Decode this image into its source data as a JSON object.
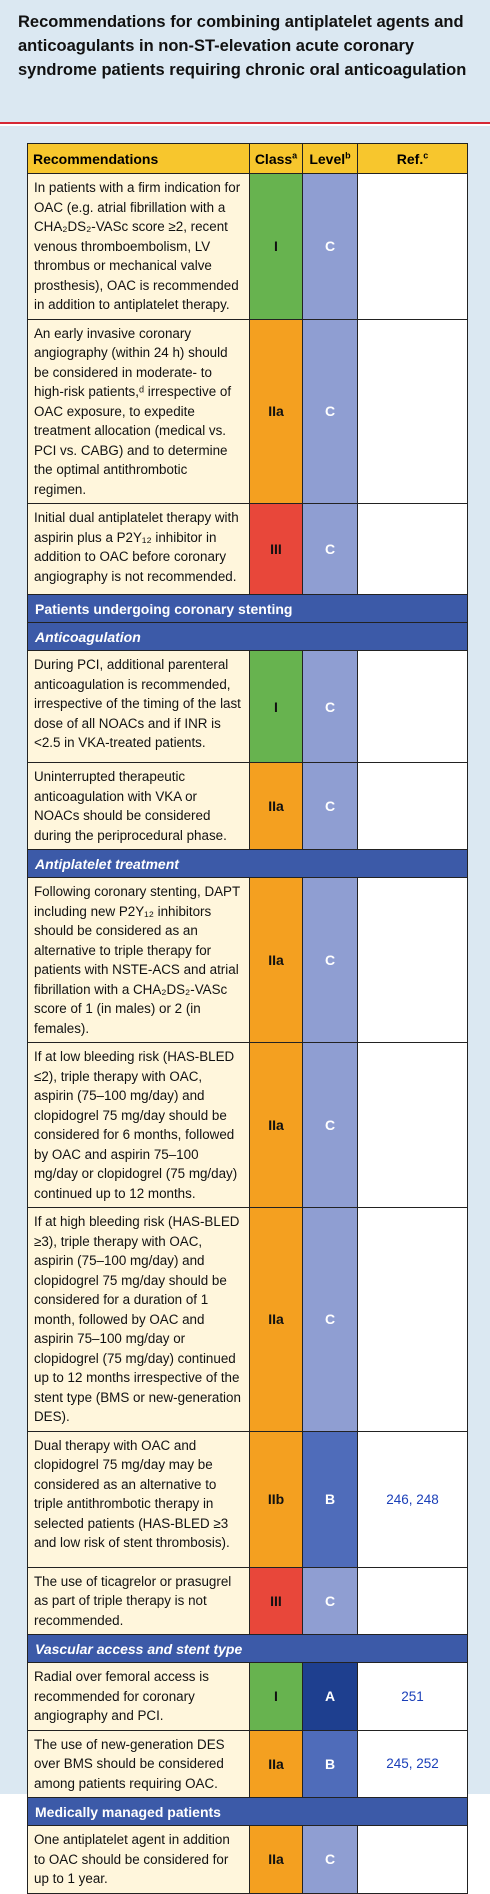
{
  "title": "Recommendations for combining antiplatelet agents and anticoagulants in non-ST-elevation acute coronary syndrome patients requiring chronic oral anticoagulation",
  "headers": {
    "rec": "Recommendations",
    "class": "Class",
    "class_sup": "a",
    "level": "Level",
    "level_sup": "b",
    "ref": "Ref.",
    "ref_sup": "c"
  },
  "rows": [
    {
      "text": "In patients with a firm indication for OAC (e.g. atrial fibrillation with a CHA₂DS₂-VASc score ≥2, recent venous thromboembolism, LV thrombus or mechanical valve prosthesis), OAC is recommended in addition to antiplatelet therapy.",
      "class": "I",
      "level": "C",
      "ref": ""
    },
    {
      "text": "An early invasive coronary angiography (within 24 h) should be considered in moderate- to high-risk patients,ᵈ irrespective of OAC exposure, to expedite treatment allocation (medical vs. PCI vs. CABG) and to determine the optimal antithrombotic regimen.",
      "class": "IIa",
      "level": "C",
      "ref": ""
    },
    {
      "text": "Initial dual antiplatelet therapy with aspirin plus a P2Y₁₂ inhibitor in addition to OAC before coronary angiography is not recommended.",
      "class": "III",
      "level": "C",
      "ref": ""
    },
    {
      "section": "Patients undergoing coronary stenting"
    },
    {
      "subsection": "Anticoagulation"
    },
    {
      "text": "During PCI, additional parenteral anticoagulation is recommended, irrespective of the timing of the last dose of all NOACs and if INR is <2.5 in VKA-treated patients.",
      "class": "I",
      "level": "C",
      "ref": ""
    },
    {
      "text": "Uninterrupted therapeutic anticoagulation with VKA or NOACs should be considered during the periprocedural phase.",
      "class": "IIa",
      "level": "C",
      "ref": ""
    },
    {
      "subsection": "Antiplatelet treatment"
    },
    {
      "text": "Following coronary stenting, DAPT including new P2Y₁₂ inhibitors should be considered as an alternative to triple therapy for patients with NSTE-ACS and atrial fibrillation with a CHA₂DS₂-VASc score of 1 (in males) or 2 (in females).",
      "class": "IIa",
      "level": "C",
      "ref": ""
    },
    {
      "text": "If at low bleeding risk (HAS-BLED ≤2), triple therapy with OAC, aspirin (75–100 mg/day) and clopidogrel 75 mg/day should be considered for 6 months, followed by OAC and aspirin 75–100 mg/day or clopidogrel (75 mg/day) continued up to 12 months.",
      "class": "IIa",
      "level": "C",
      "ref": ""
    },
    {
      "text": "If at high bleeding risk (HAS-BLED ≥3), triple therapy with OAC, aspirin (75–100 mg/day) and clopidogrel 75 mg/day should be considered for a duration of 1 month, followed by OAC and aspirin 75–100 mg/day or clopidogrel (75 mg/day) continued up to 12 months irrespective of the stent type (BMS or new-generation DES).",
      "class": "IIa",
      "level": "C",
      "ref": ""
    },
    {
      "text": "Dual therapy with OAC and clopidogrel 75 mg/day may be considered as an alternative to triple antithrombotic therapy in selected patients (HAS-BLED ≥3 and low risk of stent thrombosis).",
      "class": "IIb",
      "level": "B",
      "ref": "246, 248"
    },
    {
      "text": "The use of ticagrelor or prasugrel as part of triple therapy is not recommended.",
      "class": "III",
      "level": "C",
      "ref": ""
    },
    {
      "subsection": "Vascular access and stent type"
    },
    {
      "text": "Radial over femoral access is recommended for coronary angiography and PCI.",
      "class": "I",
      "level": "A",
      "ref": "251"
    },
    {
      "text": "The use of new-generation DES over BMS should be considered among patients requiring OAC.",
      "class": "IIa",
      "level": "B",
      "ref": "245, 252"
    },
    {
      "section": "Medically managed patients"
    },
    {
      "text": "One antiplatelet agent in addition to OAC should be considered for up to 1 year.",
      "class": "IIa",
      "level": "C",
      "ref": ""
    }
  ]
}
